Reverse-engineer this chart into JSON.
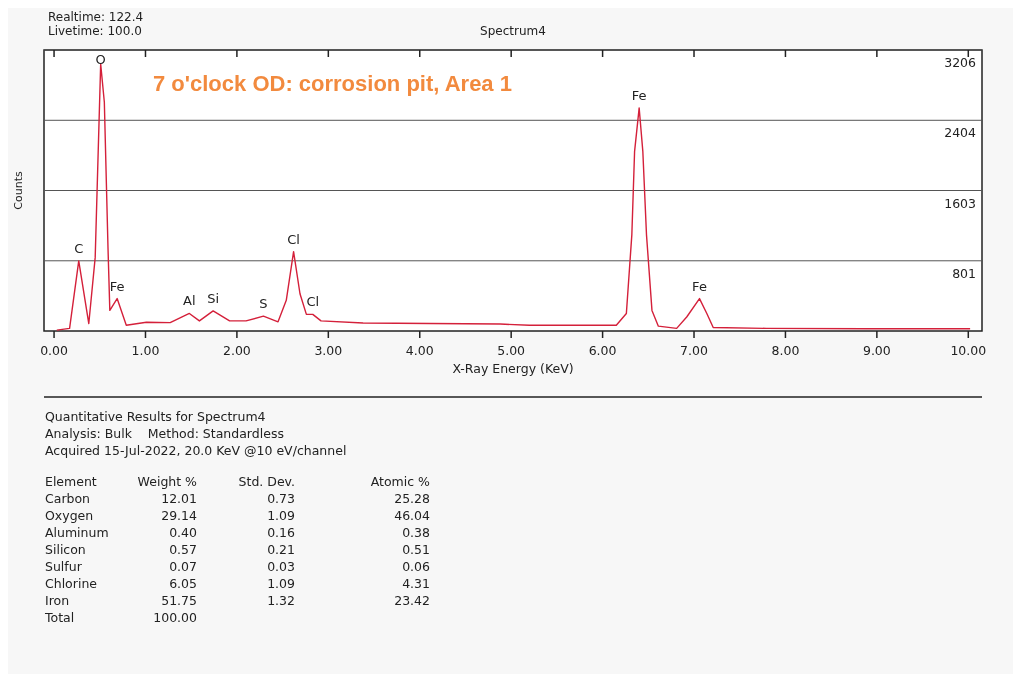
{
  "chart_data": {
    "type": "line",
    "title": "Spectrum4",
    "xlabel": "X-Ray Energy (KeV)",
    "ylabel": "Counts",
    "x": [
      0.03,
      0.17,
      0.27,
      0.38,
      0.45,
      0.51,
      0.55,
      0.59,
      0.61,
      0.69,
      0.79,
      1.01,
      1.27,
      1.48,
      1.59,
      1.74,
      1.92,
      2.1,
      2.29,
      2.45,
      2.54,
      2.62,
      2.69,
      2.76,
      2.83,
      2.92,
      3.38,
      4.11,
      4.88,
      5.2,
      6.15,
      6.26,
      6.32,
      6.35,
      6.4,
      6.44,
      6.48,
      6.54,
      6.61,
      6.81,
      6.92,
      7.06,
      7.14,
      7.21,
      7.79,
      8.89,
      10.02
    ],
    "series": [
      {
        "color": "#d4203a",
        "values": [
          10,
          30,
          800,
          85,
          840,
          3046,
          2610,
          950,
          235,
          370,
          65,
          100,
          95,
          200,
          115,
          230,
          115,
          115,
          170,
          105,
          350,
          905,
          425,
          190,
          190,
          115,
          92,
          85,
          80,
          65,
          65,
          200,
          1100,
          2050,
          2545,
          2050,
          1100,
          235,
          55,
          30,
          160,
          370,
          200,
          40,
          30,
          25,
          25
        ]
      }
    ],
    "xlim": [
      -0.11,
      10.15
    ],
    "ylim": [
      0,
      3206
    ],
    "xticks": [
      {
        "value": 0,
        "label": "0.00"
      },
      {
        "value": 1,
        "label": "1.00"
      },
      {
        "value": 2,
        "label": "2.00"
      },
      {
        "value": 3,
        "label": "3.00"
      },
      {
        "value": 4,
        "label": "4.00"
      },
      {
        "value": 5,
        "label": "5.00"
      },
      {
        "value": 6,
        "label": "6.00"
      },
      {
        "value": 7,
        "label": "7.00"
      },
      {
        "value": 8,
        "label": "8.00"
      },
      {
        "value": 9,
        "label": "9.00"
      },
      {
        "value": 10,
        "label": "10.00"
      }
    ],
    "yticks": [
      801,
      1603,
      2404,
      3206
    ],
    "grid": "y",
    "marker": "none",
    "line_style": "solid",
    "annotations": [
      "Realtime: 122.4",
      "Livetime: 100.0",
      "7 o'clock OD: corrosion pit, Area 1",
      "Quantitative Results for Spectrum4",
      "Analysis: Bulk    Method: Standardless",
      "Acquired 15-Jul-2022, 20.0 KeV @10 eV/channel",
      "Element\tWeight %\tStd. Dev.\tAtomic %",
      "Carbon\t12.01\t0.73\t25.28",
      "Oxygen\t29.14\t1.09\t46.04",
      "Aluminum\t0.40\t0.16\t0.38",
      "Silicon\t0.57\t0.21\t0.51",
      "Sulfur\t0.07\t0.03\t0.06",
      "Chlorine\t6.05\t1.09\t4.31",
      "Iron\t51.75\t1.32\t23.42",
      "Total\t100.00",
      {
        "text": "C",
        "x": 0.27,
        "y": 800
      },
      {
        "text": "O",
        "x": 0.51,
        "y": 3046
      },
      {
        "text": "Fe",
        "x": 0.69,
        "y": 370
      },
      {
        "text": "Al",
        "x": 1.48,
        "y": 200
      },
      {
        "text": "Si",
        "x": 1.74,
        "y": 230
      },
      {
        "text": "S",
        "x": 2.29,
        "y": 170
      },
      {
        "text": "Cl",
        "x": 2.62,
        "y": 905
      },
      {
        "text": "Cl",
        "x": 2.83,
        "y": 190
      },
      {
        "text": "Fe",
        "x": 6.4,
        "y": 2545
      },
      {
        "text": "Fe",
        "x": 7.06,
        "y": 370
      }
    ]
  }
}
